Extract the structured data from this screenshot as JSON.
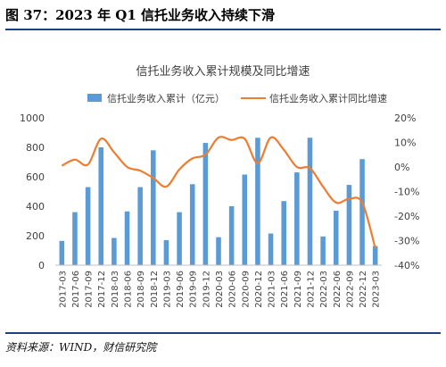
{
  "figure": {
    "title": "图 37：2023 年 Q1 信托业务收入持续下滑",
    "source": "资料来源：WIND，财信研究院"
  },
  "colors": {
    "bar": "#5b9bd5",
    "line": "#ed7d31",
    "rule": "#1f3f7f",
    "text": "#404040"
  },
  "chart_data": {
    "type": "bar",
    "title": "信托业务收入累计规模及同比增速",
    "categories": [
      "2017-03",
      "2017-06",
      "2017-09",
      "2017-12",
      "2018-03",
      "2018-06",
      "2018-09",
      "2018-12",
      "2019-03",
      "2019-06",
      "2019-09",
      "2019-12",
      "2020-03",
      "2020-06",
      "2020-09",
      "2020-12",
      "2021-03",
      "2021-06",
      "2021-09",
      "2021-12",
      "2022-03",
      "2022-06",
      "2022-09",
      "2022-12",
      "2023-03"
    ],
    "series": [
      {
        "name": "信托业务收入累计（亿元）",
        "type": "bar",
        "axis": "left",
        "values": [
          165,
          360,
          530,
          800,
          185,
          365,
          530,
          780,
          170,
          360,
          550,
          830,
          190,
          400,
          615,
          865,
          215,
          435,
          630,
          865,
          195,
          370,
          545,
          720,
          130
        ]
      },
      {
        "name": "信托业务收入累计同比增速",
        "type": "line",
        "axis": "right",
        "values": [
          0.5,
          3,
          1,
          11.5,
          6,
          0,
          -1.5,
          -4.5,
          -8,
          -1,
          3.5,
          5,
          12,
          11,
          11.5,
          1.5,
          12,
          7,
          0,
          -0.5,
          -8,
          -14.5,
          -13,
          -14.5,
          -33
        ]
      }
    ],
    "y_left": {
      "min": 0,
      "max": 1000,
      "ticks": [
        0,
        200,
        400,
        600,
        800,
        1000
      ]
    },
    "y_right": {
      "min": -40,
      "max": 20,
      "ticks": [
        "-40%",
        "-30%",
        "-20%",
        "-10%",
        "0%",
        "10%",
        "20%"
      ]
    },
    "legend": "top",
    "grid": false
  }
}
